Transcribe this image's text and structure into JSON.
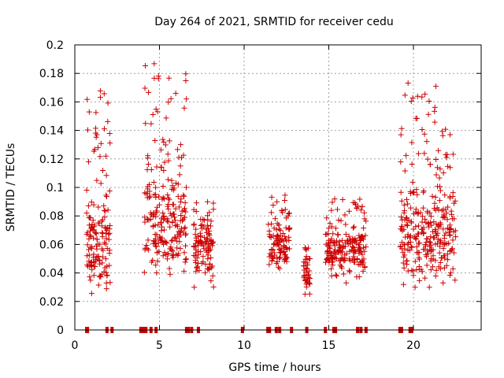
{
  "chart_data": {
    "type": "scatter",
    "title": "Day 264 of 2021, SRMTID for receiver cedu",
    "xlabel": "GPS time / hours",
    "ylabel": "SRMTID / TECUs",
    "xlim": [
      0,
      24
    ],
    "ylim": [
      0,
      0.2
    ],
    "x_ticks": [
      0,
      5,
      10,
      15,
      20
    ],
    "x_tick_labels": [
      "0",
      "5",
      "10",
      "15",
      "20"
    ],
    "y_ticks": [
      0,
      0.02,
      0.04,
      0.06,
      0.08,
      0.1,
      0.12,
      0.14,
      0.16,
      0.18,
      0.2
    ],
    "y_tick_labels": [
      "0",
      "0.02",
      "0.04",
      "0.06",
      "0.08",
      "0.1",
      "0.12",
      "0.14",
      "0.16",
      "0.18",
      "0.2"
    ],
    "grid": true,
    "marker": "+",
    "color": "#cc0000",
    "clusters": [
      {
        "x_start": 0.7,
        "x_end": 2.1,
        "y_min": 0.025,
        "y_max": 0.17,
        "y_center": 0.058,
        "count": 150
      },
      {
        "x_start": 4.1,
        "x_end": 6.6,
        "y_min": 0.037,
        "y_max": 0.187,
        "y_center": 0.075,
        "count": 230
      },
      {
        "x_start": 7.0,
        "x_end": 8.2,
        "y_min": 0.03,
        "y_max": 0.09,
        "y_center": 0.055,
        "count": 110
      },
      {
        "x_start": 11.4,
        "x_end": 12.7,
        "y_min": 0.035,
        "y_max": 0.097,
        "y_center": 0.058,
        "count": 110
      },
      {
        "x_start": 13.5,
        "x_end": 13.9,
        "y_min": 0.025,
        "y_max": 0.06,
        "y_center": 0.04,
        "count": 40
      },
      {
        "x_start": 14.8,
        "x_end": 17.2,
        "y_min": 0.033,
        "y_max": 0.092,
        "y_center": 0.055,
        "count": 200
      },
      {
        "x_start": 19.2,
        "x_end": 22.5,
        "y_min": 0.03,
        "y_max": 0.175,
        "y_center": 0.065,
        "count": 300
      }
    ],
    "zero_points_x": [
      0.7,
      0.75,
      1.9,
      2.2,
      3.9,
      4.05,
      4.2,
      4.5,
      4.8,
      6.6,
      6.7,
      6.9,
      7.3,
      9.9,
      11.4,
      11.5,
      11.9,
      12.1,
      12.8,
      13.7,
      14.8,
      15.3,
      15.4,
      16.7,
      16.9,
      17.2,
      19.2,
      19.3,
      19.8,
      19.9
    ]
  }
}
